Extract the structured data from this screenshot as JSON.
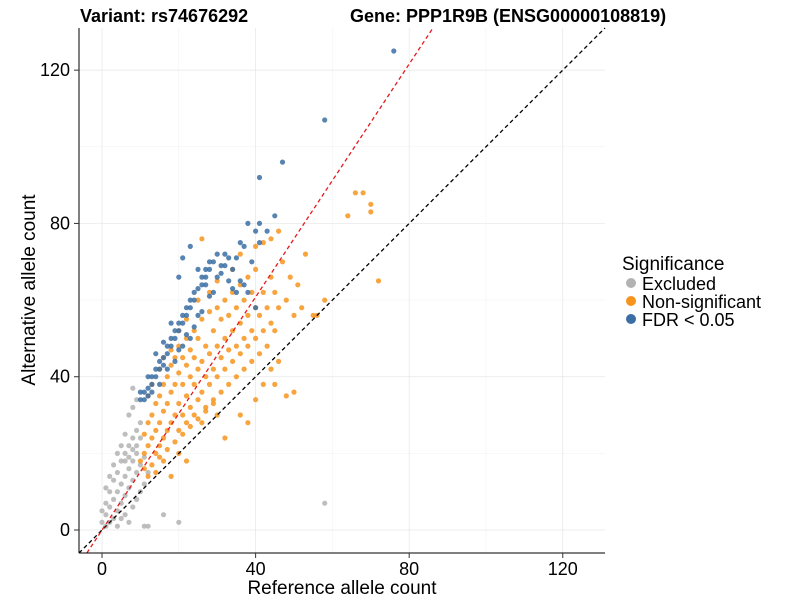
{
  "chart_data": {
    "type": "scatter",
    "title_left": "Variant: rs74676292",
    "title_right": "Gene: PPP1R9B (ENSG00000108819)",
    "xlabel": "Reference allele count",
    "ylabel": "Alternative allele count",
    "xlim": [
      -6,
      131
    ],
    "ylim": [
      -6,
      131
    ],
    "x_ticks": [
      0,
      40,
      80,
      120
    ],
    "y_ticks": [
      0,
      40,
      80,
      120
    ],
    "grid": true,
    "legend": {
      "title": "Significance",
      "position": "right",
      "entries": [
        {
          "label": "Excluded",
          "color": "#b3b3b3"
        },
        {
          "label": "Non-significant",
          "color": "#f7941d"
        },
        {
          "label": "FDR < 0.05",
          "color": "#3b6ea5"
        }
      ]
    },
    "reference_lines": [
      {
        "name": "identity",
        "color": "#000000",
        "style": "dashed",
        "slope": 1.0,
        "intercept": 0
      },
      {
        "name": "fit",
        "color": "#e41a1c",
        "style": "dashed",
        "slope": 1.52,
        "intercept": 0
      }
    ],
    "series": [
      {
        "name": "Excluded",
        "color": "#b3b3b3",
        "points": [
          [
            0,
            2
          ],
          [
            1,
            1
          ],
          [
            1,
            4
          ],
          [
            2,
            2
          ],
          [
            2,
            6
          ],
          [
            3,
            3
          ],
          [
            3,
            8
          ],
          [
            4,
            1
          ],
          [
            4,
            5
          ],
          [
            4,
            10
          ],
          [
            5,
            3
          ],
          [
            5,
            7
          ],
          [
            5,
            12
          ],
          [
            6,
            4
          ],
          [
            6,
            9
          ],
          [
            6,
            14
          ],
          [
            7,
            2
          ],
          [
            7,
            11
          ],
          [
            7,
            16
          ],
          [
            8,
            6
          ],
          [
            8,
            13
          ],
          [
            8,
            18
          ],
          [
            9,
            8
          ],
          [
            9,
            15
          ],
          [
            9,
            20
          ],
          [
            10,
            10
          ],
          [
            10,
            17
          ],
          [
            3,
            13
          ],
          [
            2,
            10
          ],
          [
            1,
            7
          ],
          [
            0,
            5
          ],
          [
            4,
            15
          ],
          [
            5,
            18
          ],
          [
            6,
            20
          ],
          [
            7,
            22
          ],
          [
            8,
            24
          ],
          [
            9,
            26
          ],
          [
            10,
            28
          ],
          [
            7,
            30
          ],
          [
            8,
            32
          ],
          [
            9,
            34
          ],
          [
            8,
            37
          ],
          [
            6,
            25
          ],
          [
            5,
            22
          ],
          [
            3,
            17
          ],
          [
            2,
            14
          ],
          [
            1,
            11
          ],
          [
            11,
            12
          ],
          [
            12,
            15
          ],
          [
            11,
            19
          ],
          [
            9,
            22
          ],
          [
            10,
            24
          ],
          [
            4,
            20
          ],
          [
            6,
            18
          ],
          [
            7,
            19
          ],
          [
            8,
            21
          ],
          [
            12,
            1
          ],
          [
            11,
            1
          ],
          [
            16,
            4
          ],
          [
            20,
            2
          ],
          [
            58,
            7
          ]
        ]
      },
      {
        "name": "Non-significant",
        "color": "#f7941d",
        "points": [
          [
            10,
            18
          ],
          [
            11,
            20
          ],
          [
            11,
            25
          ],
          [
            12,
            22
          ],
          [
            12,
            28
          ],
          [
            13,
            24
          ],
          [
            13,
            30
          ],
          [
            14,
            20
          ],
          [
            14,
            26
          ],
          [
            14,
            33
          ],
          [
            15,
            22
          ],
          [
            15,
            28
          ],
          [
            15,
            35
          ],
          [
            16,
            24
          ],
          [
            16,
            31
          ],
          [
            16,
            38
          ],
          [
            17,
            26
          ],
          [
            17,
            33
          ],
          [
            17,
            40
          ],
          [
            18,
            28
          ],
          [
            18,
            36
          ],
          [
            18,
            43
          ],
          [
            19,
            30
          ],
          [
            19,
            38
          ],
          [
            19,
            45
          ],
          [
            20,
            26
          ],
          [
            20,
            33
          ],
          [
            20,
            41
          ],
          [
            20,
            48
          ],
          [
            21,
            30
          ],
          [
            21,
            38
          ],
          [
            21,
            45
          ],
          [
            22,
            28
          ],
          [
            22,
            35
          ],
          [
            22,
            43
          ],
          [
            22,
            50
          ],
          [
            23,
            32
          ],
          [
            23,
            40
          ],
          [
            23,
            47
          ],
          [
            24,
            30
          ],
          [
            24,
            38
          ],
          [
            24,
            45
          ],
          [
            24,
            52
          ],
          [
            25,
            34
          ],
          [
            25,
            42
          ],
          [
            25,
            50
          ],
          [
            26,
            36
          ],
          [
            26,
            44
          ],
          [
            26,
            55
          ],
          [
            27,
            32
          ],
          [
            27,
            40
          ],
          [
            27,
            48
          ],
          [
            28,
            38
          ],
          [
            28,
            46
          ],
          [
            28,
            57
          ],
          [
            29,
            34
          ],
          [
            29,
            42
          ],
          [
            29,
            52
          ],
          [
            30,
            40
          ],
          [
            30,
            48
          ],
          [
            30,
            58
          ],
          [
            31,
            36
          ],
          [
            31,
            45
          ],
          [
            31,
            55
          ],
          [
            32,
            42
          ],
          [
            32,
            50
          ],
          [
            32,
            60
          ],
          [
            33,
            38
          ],
          [
            33,
            47
          ],
          [
            33,
            56
          ],
          [
            34,
            44
          ],
          [
            34,
            52
          ],
          [
            34,
            62
          ],
          [
            35,
            40
          ],
          [
            35,
            48
          ],
          [
            35,
            58
          ],
          [
            36,
            46
          ],
          [
            36,
            54
          ],
          [
            36,
            64
          ],
          [
            37,
            42
          ],
          [
            37,
            50
          ],
          [
            37,
            60
          ],
          [
            38,
            48
          ],
          [
            38,
            56
          ],
          [
            38,
            66
          ],
          [
            39,
            44
          ],
          [
            39,
            52
          ],
          [
            39,
            62
          ],
          [
            40,
            50
          ],
          [
            40,
            58
          ],
          [
            40,
            68
          ],
          [
            41,
            46
          ],
          [
            41,
            56
          ],
          [
            42,
            52
          ],
          [
            42,
            62
          ],
          [
            43,
            48
          ],
          [
            43,
            58
          ],
          [
            44,
            54
          ],
          [
            44,
            66
          ],
          [
            45,
            52
          ],
          [
            45,
            62
          ],
          [
            46,
            58
          ],
          [
            47,
            70
          ],
          [
            48,
            60
          ],
          [
            49,
            66
          ],
          [
            50,
            56
          ],
          [
            51,
            64
          ],
          [
            52,
            58
          ],
          [
            53,
            72
          ],
          [
            55,
            56
          ],
          [
            56,
            56
          ],
          [
            58,
            60
          ],
          [
            64,
            82
          ],
          [
            66,
            88
          ],
          [
            68,
            88
          ],
          [
            70,
            85
          ],
          [
            70,
            83
          ],
          [
            72,
            65
          ],
          [
            45,
            38
          ],
          [
            48,
            35
          ],
          [
            50,
            36
          ],
          [
            42,
            38
          ],
          [
            36,
            30
          ],
          [
            30,
            30
          ],
          [
            26,
            28
          ],
          [
            20,
            20
          ],
          [
            16,
            18
          ],
          [
            14,
            15
          ],
          [
            12,
            14
          ],
          [
            18,
            14
          ],
          [
            22,
            18
          ],
          [
            32,
            24
          ],
          [
            38,
            28
          ],
          [
            40,
            34
          ],
          [
            44,
            42
          ],
          [
            46,
            44
          ],
          [
            26,
            76
          ],
          [
            44,
            76
          ],
          [
            46,
            78
          ],
          [
            12,
            35
          ],
          [
            13,
            38
          ],
          [
            15,
            42
          ],
          [
            16,
            45
          ],
          [
            18,
            47
          ],
          [
            20,
            52
          ],
          [
            22,
            55
          ],
          [
            25,
            60
          ],
          [
            28,
            62
          ],
          [
            30,
            65
          ],
          [
            34,
            68
          ],
          [
            36,
            72
          ],
          [
            40,
            74
          ],
          [
            42,
            75
          ],
          [
            11,
            16
          ],
          [
            13,
            17
          ],
          [
            15,
            19
          ],
          [
            17,
            21
          ],
          [
            19,
            23
          ],
          [
            21,
            25
          ],
          [
            23,
            27
          ],
          [
            25,
            29
          ],
          [
            27,
            31
          ],
          [
            29,
            33
          ]
        ]
      },
      {
        "name": "FDR < 0.05",
        "color": "#3b6ea5",
        "points": [
          [
            10,
            34
          ],
          [
            10,
            36
          ],
          [
            11,
            34
          ],
          [
            11,
            36
          ],
          [
            12,
            35
          ],
          [
            12,
            37
          ],
          [
            13,
            38
          ],
          [
            13,
            40
          ],
          [
            14,
            40
          ],
          [
            14,
            42
          ],
          [
            15,
            42
          ],
          [
            15,
            44
          ],
          [
            16,
            43
          ],
          [
            16,
            45
          ],
          [
            17,
            46
          ],
          [
            17,
            48
          ],
          [
            18,
            48
          ],
          [
            18,
            50
          ],
          [
            19,
            50
          ],
          [
            19,
            52
          ],
          [
            20,
            52
          ],
          [
            20,
            54
          ],
          [
            21,
            54
          ],
          [
            21,
            56
          ],
          [
            22,
            56
          ],
          [
            22,
            58
          ],
          [
            23,
            58
          ],
          [
            23,
            60
          ],
          [
            24,
            60
          ],
          [
            24,
            62
          ],
          [
            25,
            63
          ],
          [
            26,
            64
          ],
          [
            26,
            66
          ],
          [
            27,
            66
          ],
          [
            27,
            68
          ],
          [
            28,
            68
          ],
          [
            28,
            70
          ],
          [
            29,
            70
          ],
          [
            30,
            72
          ],
          [
            31,
            69
          ],
          [
            32,
            72
          ],
          [
            33,
            71
          ],
          [
            34,
            68
          ],
          [
            35,
            71
          ],
          [
            36,
            75
          ],
          [
            37,
            74
          ],
          [
            38,
            80
          ],
          [
            40,
            78
          ],
          [
            41,
            80
          ],
          [
            20,
            66
          ],
          [
            21,
            71
          ],
          [
            23,
            74
          ],
          [
            25,
            68
          ],
          [
            27,
            64
          ],
          [
            29,
            62
          ],
          [
            31,
            67
          ],
          [
            33,
            65
          ],
          [
            35,
            62
          ],
          [
            37,
            64
          ],
          [
            39,
            70
          ],
          [
            41,
            75
          ],
          [
            43,
            78
          ],
          [
            45,
            82
          ],
          [
            20,
            47
          ],
          [
            22,
            51
          ],
          [
            24,
            53
          ],
          [
            26,
            57
          ],
          [
            28,
            61
          ],
          [
            30,
            66
          ],
          [
            32,
            69
          ],
          [
            34,
            63
          ],
          [
            36,
            65
          ],
          [
            38,
            62
          ],
          [
            40,
            58
          ],
          [
            41,
            92
          ],
          [
            47,
            96
          ],
          [
            58,
            107
          ],
          [
            76,
            125
          ],
          [
            12,
            40
          ],
          [
            14,
            46
          ],
          [
            16,
            49
          ],
          [
            18,
            54
          ],
          [
            13,
            36
          ],
          [
            15,
            38
          ],
          [
            17,
            42
          ],
          [
            19,
            44
          ],
          [
            21,
            48
          ],
          [
            23,
            50
          ],
          [
            25,
            56
          ]
        ]
      }
    ]
  }
}
